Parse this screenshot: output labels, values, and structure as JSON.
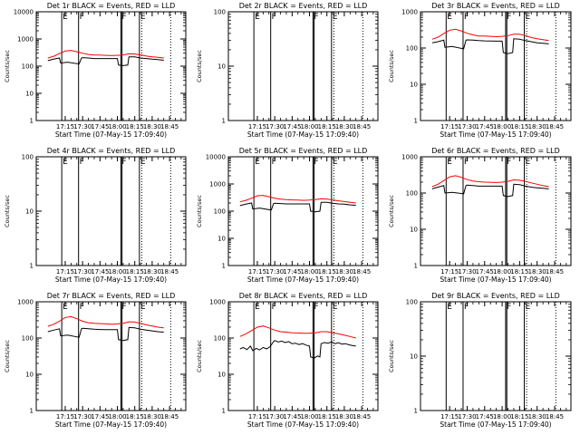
{
  "chart_data": {
    "type": "line",
    "xlabel": "Start Time (07-May-15 17:09:40)",
    "ylabel": "Counts/sec",
    "x_range_min": [
      10,
      100
    ],
    "x_ticks": [
      {
        "t": 15,
        "label": "17:15"
      },
      {
        "t": 30,
        "label": "17:30"
      },
      {
        "t": 45,
        "label": "17:45"
      },
      {
        "t": 60,
        "label": "18:00"
      },
      {
        "t": 75,
        "label": "18:15"
      },
      {
        "t": 90,
        "label": "18:30"
      },
      {
        "t": 105,
        "label": "18:45"
      }
    ],
    "markers": [
      {
        "t": 12.0,
        "style": "solid",
        "flag": "E"
      },
      {
        "t": 26.5,
        "style": "solid",
        "flag": "F"
      },
      {
        "t": 63.0,
        "style": "solid",
        "flag": "F"
      },
      {
        "t": 64.0,
        "style": "solid",
        "flag": ""
      },
      {
        "t": 79.0,
        "style": "solid",
        "flag": "E"
      },
      {
        "t": 81.0,
        "style": "dotted",
        "flag": ""
      },
      {
        "t": 106.0,
        "style": "dotted",
        "flag": ""
      }
    ],
    "legend": "BLACK = Events, RED = LLD",
    "panels": [
      {
        "title": "Det 1r BLACK = Events, RED = LLD",
        "ylim": [
          1,
          10000
        ],
        "y_ticks": [
          {
            "v": 1,
            "label": "1"
          },
          {
            "v": 10,
            "label": "10"
          },
          {
            "v": 100,
            "label": "100"
          },
          {
            "v": 1000,
            "label": "1000"
          },
          {
            "v": 10000,
            "label": "10000"
          }
        ],
        "series": [
          {
            "name": "Events",
            "color": "#000000",
            "x": [
              0,
              5,
              10,
              11,
              17,
              27,
              29,
              30,
              35,
              40,
              45,
              50,
              55,
              60,
              61,
              65,
              69,
              70,
              75,
              80,
              85,
              90,
              95,
              100
            ],
            "y": [
              160,
              180,
              200,
              130,
              140,
              120,
              200,
              205,
              200,
              190,
              190,
              190,
              190,
              190,
              110,
              105,
              110,
              220,
              220,
              200,
              190,
              180,
              175,
              165
            ]
          },
          {
            "name": "LLD",
            "color": "#ff0000",
            "x": [
              0,
              5,
              10,
              15,
              20,
              25,
              30,
              35,
              40,
              45,
              50,
              55,
              60,
              65,
              70,
              75,
              80,
              85,
              90,
              95,
              100
            ],
            "y": [
              200,
              230,
              290,
              360,
              380,
              340,
              300,
              270,
              255,
              255,
              250,
              245,
              250,
              260,
              285,
              280,
              260,
              235,
              220,
              210,
              200
            ]
          }
        ]
      },
      {
        "title": "Det 2r BLACK = Events, RED = LLD",
        "ylim": [
          1,
          100
        ],
        "y_ticks": [
          {
            "v": 1,
            "label": "1"
          },
          {
            "v": 10,
            "label": "10"
          },
          {
            "v": 100,
            "label": "100"
          }
        ],
        "series": []
      },
      {
        "title": "Det 3r BLACK = Events, RED = LLD",
        "ylim": [
          1,
          1000
        ],
        "y_ticks": [
          {
            "v": 1,
            "label": "1"
          },
          {
            "v": 10,
            "label": "10"
          },
          {
            "v": 100,
            "label": "100"
          },
          {
            "v": 1000,
            "label": "1000"
          }
        ],
        "series": [
          {
            "name": "Events",
            "color": "#000000",
            "x": [
              0,
              5,
              10,
              11,
              17,
              27,
              29,
              30,
              35,
              40,
              45,
              50,
              55,
              60,
              61,
              65,
              69,
              70,
              75,
              80,
              85,
              90,
              95,
              100
            ],
            "y": [
              140,
              150,
              165,
              105,
              110,
              95,
              165,
              168,
              165,
              160,
              158,
              157,
              155,
              155,
              75,
              70,
              75,
              180,
              175,
              160,
              150,
              140,
              135,
              130
            ]
          },
          {
            "name": "LLD",
            "color": "#ff0000",
            "x": [
              0,
              5,
              10,
              15,
              20,
              25,
              30,
              35,
              40,
              45,
              50,
              55,
              60,
              65,
              70,
              75,
              80,
              85,
              90,
              95,
              100
            ],
            "y": [
              175,
              200,
              250,
              310,
              330,
              295,
              255,
              230,
              215,
              215,
              210,
              205,
              210,
              220,
              240,
              240,
              220,
              195,
              180,
              170,
              160
            ]
          }
        ]
      },
      {
        "title": "Det 4r BLACK = Events, RED = LLD",
        "ylim": [
          1,
          100
        ],
        "y_ticks": [
          {
            "v": 1,
            "label": "1"
          },
          {
            "v": 10,
            "label": "10"
          },
          {
            "v": 100,
            "label": "100"
          }
        ],
        "series": []
      },
      {
        "title": "Det 5r BLACK = Events, RED = LLD",
        "ylim": [
          1,
          10000
        ],
        "y_ticks": [
          {
            "v": 1,
            "label": "1"
          },
          {
            "v": 10,
            "label": "10"
          },
          {
            "v": 100,
            "label": "100"
          },
          {
            "v": 1000,
            "label": "1000"
          },
          {
            "v": 10000,
            "label": "10000"
          }
        ],
        "series": [
          {
            "name": "Events",
            "color": "#000000",
            "x": [
              0,
              5,
              10,
              11,
              17,
              27,
              29,
              30,
              35,
              40,
              45,
              50,
              55,
              60,
              61,
              65,
              69,
              70,
              75,
              80,
              85,
              90,
              95,
              100
            ],
            "y": [
              160,
              180,
              200,
              120,
              130,
              110,
              190,
              195,
              190,
              185,
              185,
              185,
              185,
              185,
              100,
              95,
              100,
              210,
              210,
              195,
              185,
              180,
              170,
              165
            ]
          },
          {
            "name": "LLD",
            "color": "#ff0000",
            "x": [
              0,
              5,
              10,
              15,
              20,
              25,
              30,
              35,
              40,
              45,
              50,
              55,
              60,
              65,
              70,
              75,
              80,
              85,
              90,
              95,
              100
            ],
            "y": [
              220,
              250,
              300,
              370,
              380,
              340,
              300,
              275,
              265,
              260,
              255,
              250,
              255,
              265,
              285,
              280,
              260,
              240,
              225,
              210,
              200
            ]
          }
        ]
      },
      {
        "title": "Det 6r BLACK = Events, RED = LLD",
        "ylim": [
          1,
          1000
        ],
        "y_ticks": [
          {
            "v": 1,
            "label": "1"
          },
          {
            "v": 10,
            "label": "10"
          },
          {
            "v": 100,
            "label": "100"
          },
          {
            "v": 1000,
            "label": "1000"
          }
        ],
        "series": [
          {
            "name": "Events",
            "color": "#000000",
            "x": [
              0,
              5,
              10,
              11,
              17,
              27,
              29,
              30,
              35,
              40,
              45,
              50,
              55,
              60,
              61,
              65,
              69,
              70,
              75,
              80,
              85,
              90,
              95,
              100
            ],
            "y": [
              130,
              145,
              160,
              100,
              105,
              95,
              160,
              165,
              160,
              155,
              155,
              155,
              155,
              155,
              85,
              80,
              85,
              175,
              170,
              155,
              145,
              140,
              135,
              130
            ]
          },
          {
            "name": "LLD",
            "color": "#ff0000",
            "x": [
              0,
              5,
              10,
              15,
              20,
              25,
              30,
              35,
              40,
              45,
              50,
              55,
              60,
              65,
              70,
              75,
              80,
              85,
              90,
              95,
              100
            ],
            "y": [
              150,
              175,
              220,
              280,
              300,
              270,
              235,
              215,
              205,
              200,
              198,
              195,
              200,
              210,
              230,
              225,
              210,
              190,
              175,
              160,
              150
            ]
          }
        ]
      },
      {
        "title": "Det 7r BLACK = Events, RED = LLD",
        "ylim": [
          1,
          1000
        ],
        "y_ticks": [
          {
            "v": 1,
            "label": "1"
          },
          {
            "v": 10,
            "label": "10"
          },
          {
            "v": 100,
            "label": "100"
          },
          {
            "v": 1000,
            "label": "1000"
          }
        ],
        "series": [
          {
            "name": "Events",
            "color": "#000000",
            "x": [
              0,
              5,
              10,
              11,
              17,
              27,
              29,
              30,
              35,
              40,
              45,
              50,
              55,
              60,
              61,
              65,
              69,
              70,
              75,
              80,
              85,
              90,
              95,
              100
            ],
            "y": [
              150,
              165,
              180,
              115,
              120,
              105,
              180,
              185,
              180,
              175,
              172,
              170,
              170,
              170,
              90,
              85,
              90,
              195,
              190,
              175,
              165,
              158,
              150,
              145
            ]
          },
          {
            "name": "LLD",
            "color": "#ff0000",
            "x": [
              0,
              5,
              10,
              15,
              20,
              25,
              30,
              35,
              40,
              45,
              50,
              55,
              60,
              65,
              70,
              75,
              80,
              85,
              90,
              95,
              100
            ],
            "y": [
              210,
              240,
              290,
              370,
              390,
              340,
              290,
              265,
              255,
              250,
              245,
              240,
              245,
              255,
              280,
              275,
              255,
              230,
              215,
              200,
              190
            ]
          }
        ]
      },
      {
        "title": "Det 8r BLACK = Events, RED = LLD",
        "ylim": [
          1,
          1000
        ],
        "y_ticks": [
          {
            "v": 1,
            "label": "1"
          },
          {
            "v": 10,
            "label": "10"
          },
          {
            "v": 100,
            "label": "100"
          },
          {
            "v": 1000,
            "label": "1000"
          }
        ],
        "series": [
          {
            "name": "Events",
            "color": "#000000",
            "x": [
              0,
              3,
              6,
              9,
              11,
              14,
              17,
              20,
              23,
              26,
              29,
              30,
              33,
              36,
              39,
              42,
              45,
              48,
              51,
              54,
              57,
              60,
              61,
              64,
              67,
              69,
              70,
              73,
              76,
              79,
              82,
              85,
              88,
              91,
              94,
              97,
              100
            ],
            "y": [
              50,
              55,
              48,
              60,
              45,
              52,
              47,
              55,
              50,
              58,
              80,
              85,
              78,
              82,
              75,
              80,
              70,
              72,
              66,
              70,
              64,
              60,
              30,
              28,
              32,
              30,
              70,
              75,
              72,
              78,
              70,
              74,
              68,
              70,
              65,
              62,
              60
            ]
          },
          {
            "name": "LLD",
            "color": "#ff0000",
            "x": [
              0,
              5,
              10,
              15,
              20,
              25,
              30,
              35,
              40,
              45,
              50,
              55,
              60,
              65,
              70,
              75,
              80,
              85,
              90,
              95,
              100
            ],
            "y": [
              110,
              130,
              160,
              200,
              215,
              190,
              165,
              150,
              145,
              140,
              138,
              135,
              135,
              140,
              150,
              150,
              140,
              130,
              120,
              110,
              100
            ]
          }
        ]
      },
      {
        "title": "Det 9r BLACK = Events, RED = LLD",
        "ylim": [
          1,
          100
        ],
        "y_ticks": [
          {
            "v": 1,
            "label": "1"
          },
          {
            "v": 10,
            "label": "10"
          },
          {
            "v": 100,
            "label": "100"
          }
        ],
        "series": []
      }
    ]
  }
}
